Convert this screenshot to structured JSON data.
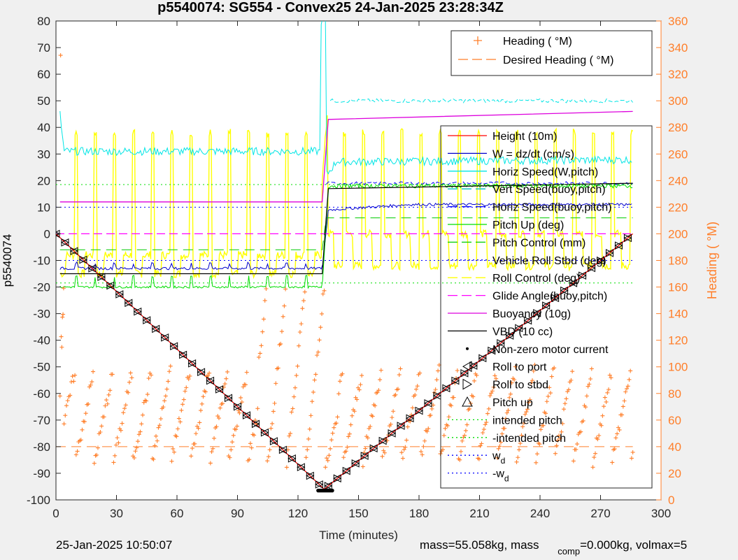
{
  "chart_data": {
    "type": "line",
    "title": "p5540074: SG554 - Convex25 24-Jan-2025 23:28:34Z",
    "xlabel": "Time (minutes)",
    "ylabel_left": "p5540074",
    "ylabel_right": "Heading (  °M)",
    "xlim": [
      0,
      300
    ],
    "ylim_left": [
      -100,
      80
    ],
    "ylim_right": [
      0,
      360
    ],
    "x_ticks": [
      0,
      30,
      60,
      90,
      120,
      150,
      180,
      210,
      240,
      270,
      300
    ],
    "y_ticks_left": [
      -100,
      -90,
      -80,
      -70,
      -60,
      -50,
      -40,
      -30,
      -20,
      -10,
      0,
      10,
      20,
      30,
      40,
      50,
      60,
      70,
      80
    ],
    "y_ticks_right": [
      0,
      20,
      40,
      60,
      80,
      100,
      120,
      140,
      160,
      180,
      200,
      220,
      240,
      260,
      280,
      300,
      320,
      340,
      360
    ],
    "grid": false,
    "legend_top": {
      "placement": "top-right",
      "entries": [
        {
          "label": "Heading (  °M)",
          "color": "#ff7f2a",
          "style": "plus"
        },
        {
          "label": "Desired Heading (  °M)",
          "color": "#ff7f2a",
          "style": "dash"
        }
      ]
    },
    "legend_main": {
      "placement": "right",
      "entries": [
        {
          "label": "Height (10m)",
          "color": "#ff0000",
          "style": "solid"
        },
        {
          "label": "W = dz/dt (cm/s)",
          "color": "#0000cc",
          "style": "solid"
        },
        {
          "label": "Horiz Speed(W,pitch)",
          "color": "#00e5e5",
          "style": "solid"
        },
        {
          "label": "Vert Speed(buoy,pitch)",
          "color": "#00bfbf",
          "style": "dash"
        },
        {
          "label": "Horiz Speed(buoy,pitch)",
          "color": "#0000ff",
          "style": "dash"
        },
        {
          "label": "Pitch Up (deg)",
          "color": "#00dd00",
          "style": "solid"
        },
        {
          "label": "Pitch Control (mm)",
          "color": "#00cc00",
          "style": "dash"
        },
        {
          "label": "Vehicle Roll Stbd (deg)",
          "color": "#0000ff",
          "style": "dot"
        },
        {
          "label": "Roll Control (deg)",
          "color": "#ffff00",
          "style": "dash"
        },
        {
          "label": "Glide Angle(buoy,pitch)",
          "color": "#ff00ff",
          "style": "dash"
        },
        {
          "label": "Buoyancy (10g)",
          "color": "#dd00dd",
          "style": "solid"
        },
        {
          "label": "VBD (10 cc)",
          "color": "#000000",
          "style": "solid"
        },
        {
          "label": "Non-zero motor current",
          "color": "#000000",
          "style": "point"
        },
        {
          "label": "Roll to port",
          "color": "#000000",
          "style": "tri-left"
        },
        {
          "label": "Roll to stbd",
          "color": "#000000",
          "style": "tri-right"
        },
        {
          "label": "Pitch up",
          "color": "#000000",
          "style": "tri-up"
        },
        {
          "label": "intended pitch",
          "color": "#00dd00",
          "style": "dot"
        },
        {
          "label": "-intended pitch",
          "color": "#00dd00",
          "style": "dot"
        },
        {
          "label": "w",
          "sub": "d",
          "color": "#0000ff",
          "style": "dot"
        },
        {
          "label": "-w",
          "sub": "d",
          "color": "#0000ff",
          "style": "dot"
        }
      ]
    },
    "series": [
      {
        "name": "Height (10m)",
        "axis": "left",
        "x": [
          0,
          133,
          286
        ],
        "y": [
          0,
          -96,
          0
        ]
      },
      {
        "name": "W = dz/dt (cm/s)",
        "axis": "left",
        "x": [
          2,
          132,
          134,
          140,
          170,
          200,
          286
        ],
        "y": [
          -13,
          -12,
          8,
          10,
          11,
          11,
          10
        ]
      },
      {
        "name": "Horiz Speed(W,pitch)",
        "axis": "left",
        "x": [
          2,
          132,
          134,
          140,
          200,
          286
        ],
        "y": [
          31,
          30,
          20,
          26,
          27,
          28
        ]
      },
      {
        "name": "Vert Speed(buoy,pitch)",
        "axis": "left",
        "x": [
          134,
          140,
          286
        ],
        "y": [
          50,
          50,
          51
        ]
      },
      {
        "name": "Horiz Speed(buoy,pitch)",
        "axis": "left",
        "x": [
          134,
          140,
          286
        ],
        "y": [
          18,
          19,
          19
        ]
      },
      {
        "name": "Pitch Up (deg)",
        "axis": "left",
        "x": [
          2,
          132,
          134,
          286
        ],
        "y": [
          -20,
          -19,
          18,
          19
        ]
      },
      {
        "name": "Pitch Control (mm)",
        "axis": "left",
        "x": [
          2,
          132,
          134,
          286
        ],
        "y": [
          -6,
          -6,
          6,
          6
        ]
      },
      {
        "name": "Glide Angle(buoy,pitch)",
        "axis": "left",
        "x": [
          0,
          286
        ],
        "y": [
          0,
          0
        ]
      },
      {
        "name": "Buoyancy (10g)",
        "axis": "left",
        "x": [
          2,
          132,
          135,
          286
        ],
        "y": [
          12,
          12,
          43,
          46
        ]
      },
      {
        "name": "VBD (10 cc)",
        "axis": "left",
        "x": [
          2,
          132,
          135,
          286
        ],
        "y": [
          -15,
          -15,
          17,
          19
        ]
      },
      {
        "name": "intended pitch",
        "axis": "left",
        "x": [
          0,
          286
        ],
        "y": [
          18.5,
          18.5
        ]
      },
      {
        "name": "-intended pitch",
        "axis": "left",
        "x": [
          0,
          286
        ],
        "y": [
          -18.5,
          -18.5
        ]
      },
      {
        "name": "w_d",
        "axis": "left",
        "x": [
          0,
          286
        ],
        "y": [
          10,
          10
        ]
      },
      {
        "name": "-w_d",
        "axis": "left",
        "x": [
          0,
          286
        ],
        "y": [
          -10,
          -10
        ]
      },
      {
        "name": "Desired Heading",
        "axis": "right",
        "x": [
          0,
          286
        ],
        "y": [
          40,
          40
        ]
      }
    ]
  },
  "footer": {
    "timestamp": "25-Jan-2025 10:50:07",
    "mass_text": "mass=55.058kg, mass",
    "comp_sub": "comp",
    "mass_comp_text": "=0.000kg, volmax=5"
  }
}
